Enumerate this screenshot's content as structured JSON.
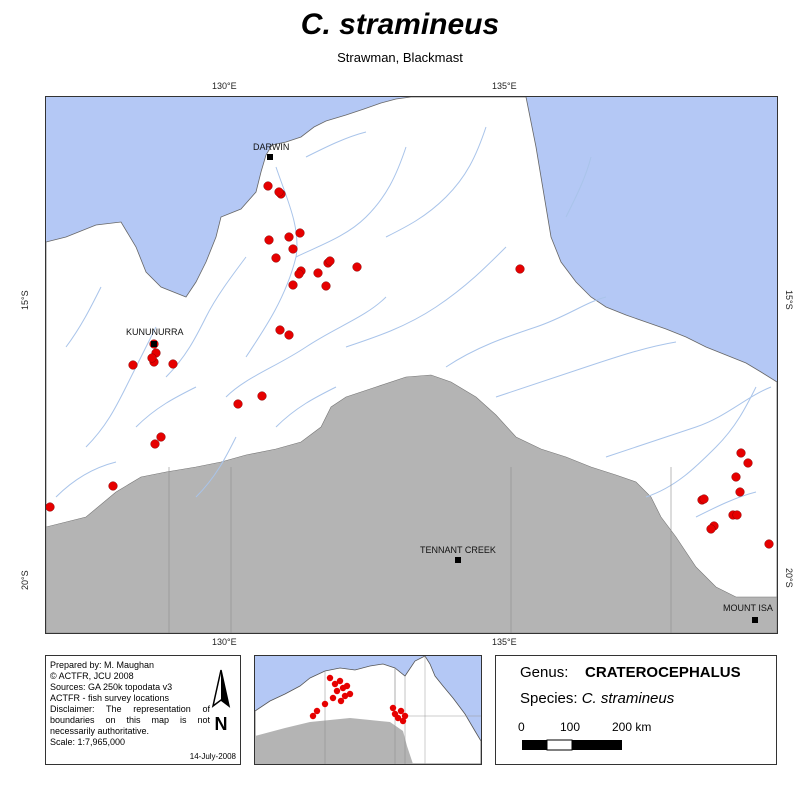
{
  "title": "C. stramineus",
  "subtitle": "Strawman, Blackmast",
  "graticule": {
    "lon_130": "130°E",
    "lon_135": "135°E",
    "lat_15": "15°S",
    "lat_20": "20°S"
  },
  "places": {
    "darwin": "DARWIN",
    "kununurra": "KUNUNURRA",
    "tennant_creek": "TENNANT CREEK",
    "mount_isa": "MOUNT ISA"
  },
  "colors": {
    "sea": "#b4c8f5",
    "land": "#ffffff",
    "outside_region": "#b4b4b4",
    "river": "#a9c4ea",
    "record": "#e60000"
  },
  "info": {
    "lines": [
      "Prepared by: M. Maughan",
      "© ACTFR, JCU 2008",
      "Sources: GA 250k topodata v3",
      "ACTFR - fish survey locations",
      "Disclaimer: The representation of boundaries on this map is not necessarily authoritative.",
      "Scale: 1:7,965,000"
    ],
    "date": "14-July-2008",
    "north_arrow": "N"
  },
  "legend": {
    "genus_label": "Genus:",
    "genus_value": "CRATEROCEPHALUS",
    "species_label": "Species:",
    "species_value": "C. stramineus",
    "scale_labels": [
      "0",
      "100",
      "200 km"
    ]
  }
}
